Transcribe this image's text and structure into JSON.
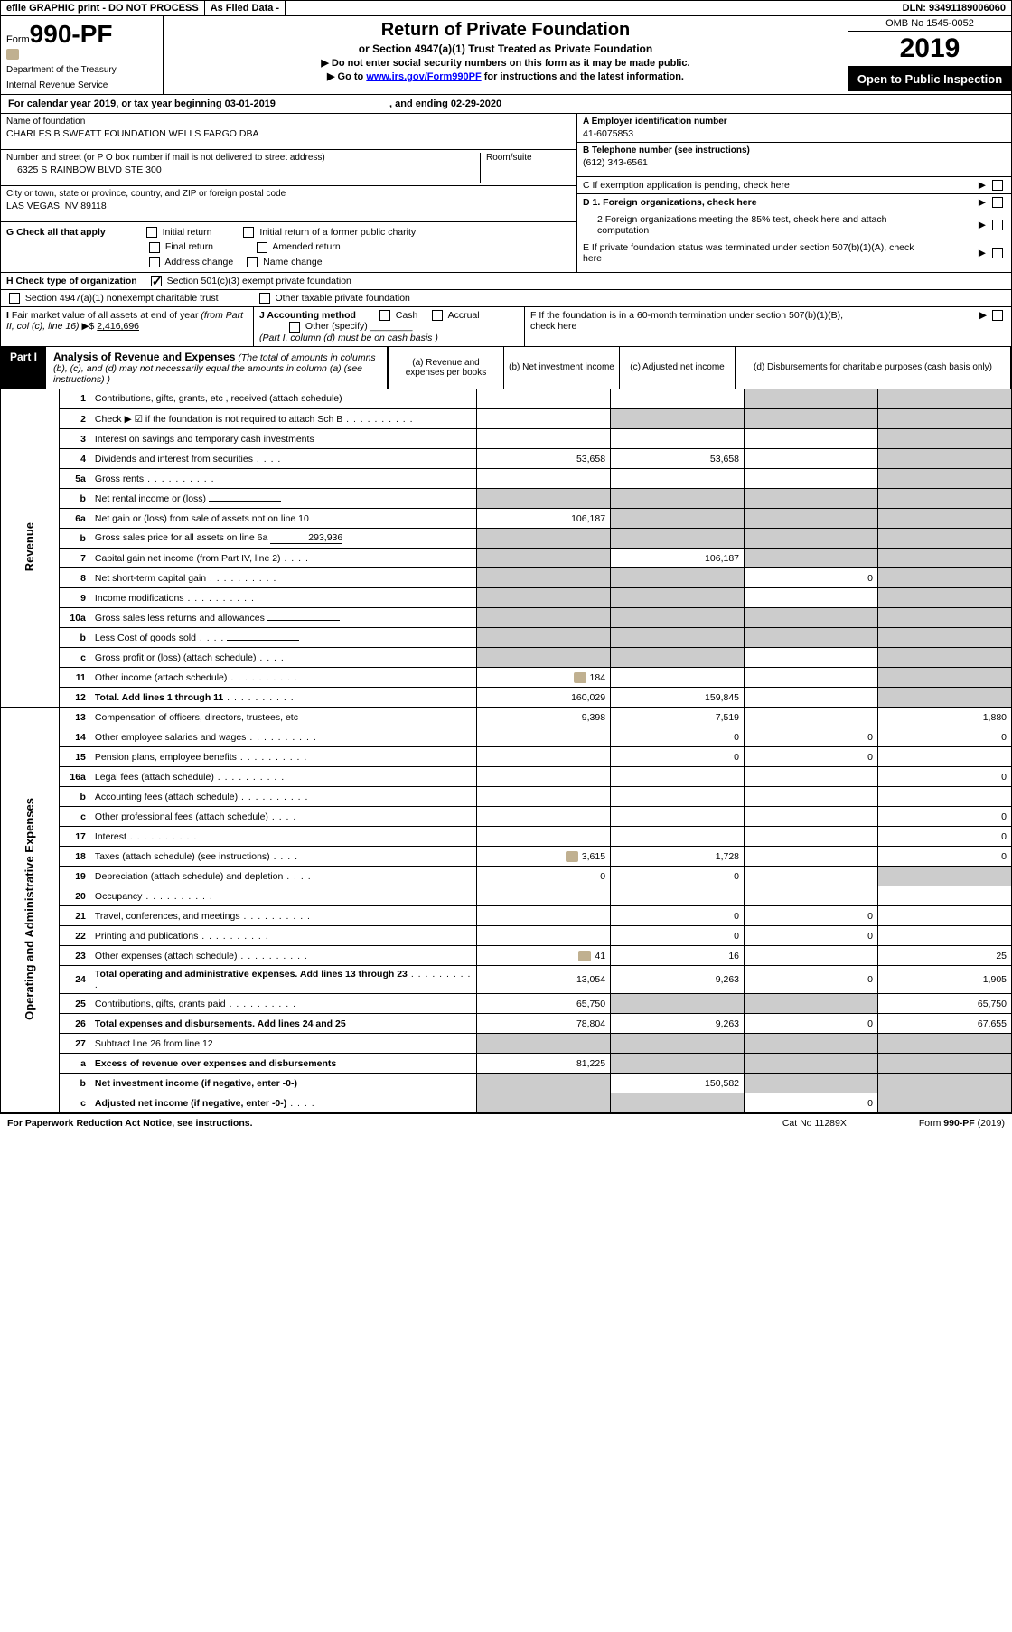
{
  "topbar": {
    "efile": "efile GRAPHIC print - DO NOT PROCESS",
    "asFiled": "As Filed Data -",
    "dln": "DLN: 93491189006060"
  },
  "header": {
    "formPrefix": "Form",
    "formNum": "990-PF",
    "dept1": "Department of the Treasury",
    "dept2": "Internal Revenue Service",
    "title": "Return of Private Foundation",
    "subtitle": "or Section 4947(a)(1) Trust Treated as Private Foundation",
    "note1": "▶ Do not enter social security numbers on this form as it may be made public.",
    "note2": "▶ Go to ",
    "link": "www.irs.gov/Form990PF",
    "note2b": " for instructions and the latest information.",
    "omb": "OMB No 1545-0052",
    "year": "2019",
    "open": "Open to Public Inspection"
  },
  "period": {
    "text1": "For calendar year 2019, or tax year beginning 03-01-2019",
    "text2": ", and ending 02-29-2020"
  },
  "ident": {
    "nameLbl": "Name of foundation",
    "name": "CHARLES B SWEATT FOUNDATION WELLS FARGO DBA",
    "addrLbl": "Number and street (or P O  box number if mail is not delivered to street address)",
    "roomLbl": "Room/suite",
    "addr": "6325 S RAINBOW BLVD STE 300",
    "cityLbl": "City or town, state or province, country, and ZIP or foreign postal code",
    "city": "LAS VEGAS, NV  89118",
    "einLbl": "A Employer identification number",
    "ein": "41-6075853",
    "telLbl": "B Telephone number (see instructions)",
    "tel": "(612) 343-6561",
    "cLbl": "C If exemption application is pending, check here",
    "d1": "D 1. Foreign organizations, check here",
    "d2": "2  Foreign organizations meeting the 85% test, check here and attach computation",
    "eLbl": "E  If private foundation status was terminated under section 507(b)(1)(A), check here",
    "fLbl": "F  If the foundation is in a 60-month termination under section 507(b)(1)(B), check here"
  },
  "g": {
    "lbl": "G Check all that apply",
    "opts": [
      "Initial return",
      "Initial return of a former public charity",
      "Final return",
      "Amended return",
      "Address change",
      "Name change"
    ]
  },
  "h": {
    "lbl": "H Check type of organization",
    "opts": [
      "Section 501(c)(3) exempt private foundation",
      "Section 4947(a)(1) nonexempt charitable trust",
      "Other taxable private foundation"
    ]
  },
  "i": {
    "lbl": "I Fair market value of all assets at end of year (from Part II, col  (c), line 16) ▶$ ",
    "val": "2,416,696"
  },
  "j": {
    "lbl": "J Accounting method",
    "cash": "Cash",
    "accrual": "Accrual",
    "other": "Other (specify)",
    "note": "(Part I, column (d) must be on cash basis )"
  },
  "part1": {
    "label": "Part I",
    "title": "Analysis of Revenue and Expenses",
    "titleNote": " (The total of amounts in columns (b), (c), and (d) may not necessarily equal the amounts in column (a) (see instructions) )",
    "colA": "(a)   Revenue and expenses per books",
    "colB": "(b)  Net investment income",
    "colC": "(c)  Adjusted net income",
    "colD": "(d)  Disbursements for charitable purposes (cash basis only)"
  },
  "sideLabels": {
    "rev": "Revenue",
    "exp": "Operating and Administrative Expenses"
  },
  "rows": [
    {
      "n": "1",
      "d": "Contributions, gifts, grants, etc , received (attach schedule)",
      "a": "",
      "b": "",
      "c": "s",
      "dd": "s"
    },
    {
      "n": "2",
      "d": "Check ▶ ☑ if the foundation is not required to attach Sch  B",
      "dots": 1,
      "a": "",
      "b": "s",
      "c": "s",
      "dd": "s"
    },
    {
      "n": "3",
      "d": "Interest on savings and temporary cash investments",
      "a": "",
      "b": "",
      "c": "",
      "dd": "s"
    },
    {
      "n": "4",
      "d": "Dividends and interest from securities",
      "dots": "s",
      "a": "53,658",
      "b": "53,658",
      "c": "",
      "dd": "s"
    },
    {
      "n": "5a",
      "d": "Gross rents",
      "dots": 1,
      "a": "",
      "b": "",
      "c": "",
      "dd": "s"
    },
    {
      "n": "b",
      "d": "Net rental income or (loss)",
      "embedded": 1,
      "a": "s",
      "b": "s",
      "c": "s",
      "dd": "s"
    },
    {
      "n": "6a",
      "d": "Net gain or (loss) from sale of assets not on line 10",
      "a": "106,187",
      "b": "s",
      "c": "s",
      "dd": "s"
    },
    {
      "n": "b",
      "d": "Gross sales price for all assets on line 6a",
      "val": "293,936",
      "embedded": 1,
      "a": "s",
      "b": "s",
      "c": "s",
      "dd": "s"
    },
    {
      "n": "7",
      "d": "Capital gain net income (from Part IV, line 2)",
      "dots": "s",
      "a": "s",
      "b": "106,187",
      "c": "s",
      "dd": "s"
    },
    {
      "n": "8",
      "d": "Net short-term capital gain",
      "dots": 1,
      "a": "s",
      "b": "s",
      "c": "0",
      "dd": "s"
    },
    {
      "n": "9",
      "d": "Income modifications",
      "dots": 1,
      "a": "s",
      "b": "s",
      "c": "",
      "dd": "s"
    },
    {
      "n": "10a",
      "d": "Gross sales less returns and allowances",
      "embedded": 1,
      "a": "s",
      "b": "s",
      "c": "s",
      "dd": "s"
    },
    {
      "n": "b",
      "d": "Less  Cost of goods sold",
      "dots": "s",
      "embedded": 1,
      "a": "s",
      "b": "s",
      "c": "s",
      "dd": "s"
    },
    {
      "n": "c",
      "d": "Gross profit or (loss) (attach schedule)",
      "dots": "s",
      "a": "s",
      "b": "s",
      "c": "",
      "dd": "s"
    },
    {
      "n": "11",
      "d": "Other income (attach schedule)",
      "dots": 1,
      "icon": 1,
      "a": "184",
      "b": "",
      "c": "",
      "dd": "s"
    },
    {
      "n": "12",
      "d": "Total. Add lines 1 through 11",
      "dots": 1,
      "bold": 1,
      "a": "160,029",
      "b": "159,845",
      "c": "",
      "dd": "s"
    },
    {
      "n": "13",
      "d": "Compensation of officers, directors, trustees, etc",
      "a": "9,398",
      "b": "7,519",
      "c": "",
      "dd": "1,880"
    },
    {
      "n": "14",
      "d": "Other employee salaries and wages",
      "dots": 1,
      "a": "",
      "b": "0",
      "c": "0",
      "dd": "0"
    },
    {
      "n": "15",
      "d": "Pension plans, employee benefits",
      "dots": 1,
      "a": "",
      "b": "0",
      "c": "0",
      "dd": ""
    },
    {
      "n": "16a",
      "d": "Legal fees (attach schedule)",
      "dots": 1,
      "a": "",
      "b": "",
      "c": "",
      "dd": "0"
    },
    {
      "n": "b",
      "d": "Accounting fees (attach schedule)",
      "dots": 1,
      "a": "",
      "b": "",
      "c": "",
      "dd": ""
    },
    {
      "n": "c",
      "d": "Other professional fees (attach schedule)",
      "dots": "s",
      "a": "",
      "b": "",
      "c": "",
      "dd": "0"
    },
    {
      "n": "17",
      "d": "Interest",
      "dots": 1,
      "a": "",
      "b": "",
      "c": "",
      "dd": "0"
    },
    {
      "n": "18",
      "d": "Taxes (attach schedule) (see instructions)",
      "dots": "s",
      "icon": 1,
      "a": "3,615",
      "b": "1,728",
      "c": "",
      "dd": "0"
    },
    {
      "n": "19",
      "d": "Depreciation (attach schedule) and depletion",
      "dots": "s",
      "a": "0",
      "b": "0",
      "c": "",
      "dd": "s"
    },
    {
      "n": "20",
      "d": "Occupancy",
      "dots": 1,
      "a": "",
      "b": "",
      "c": "",
      "dd": ""
    },
    {
      "n": "21",
      "d": "Travel, conferences, and meetings",
      "dots": 1,
      "a": "",
      "b": "0",
      "c": "0",
      "dd": ""
    },
    {
      "n": "22",
      "d": "Printing and publications",
      "dots": 1,
      "a": "",
      "b": "0",
      "c": "0",
      "dd": ""
    },
    {
      "n": "23",
      "d": "Other expenses (attach schedule)",
      "dots": 1,
      "icon": 1,
      "a": "41",
      "b": "16",
      "c": "",
      "dd": "25"
    },
    {
      "n": "24",
      "d": "Total operating and administrative expenses. Add lines 13 through 23",
      "dots": 1,
      "bold": 1,
      "a": "13,054",
      "b": "9,263",
      "c": "0",
      "dd": "1,905"
    },
    {
      "n": "25",
      "d": "Contributions, gifts, grants paid",
      "dots": 1,
      "a": "65,750",
      "b": "s",
      "c": "s",
      "dd": "65,750"
    },
    {
      "n": "26",
      "d": "Total expenses and disbursements. Add lines 24 and 25",
      "bold": 1,
      "a": "78,804",
      "b": "9,263",
      "c": "0",
      "dd": "67,655"
    },
    {
      "n": "27",
      "d": "Subtract line 26 from line 12",
      "a": "s",
      "b": "s",
      "c": "s",
      "dd": "s"
    },
    {
      "n": "a",
      "d": "Excess of revenue over expenses and disbursements",
      "bold": 1,
      "a": "81,225",
      "b": "s",
      "c": "s",
      "dd": "s"
    },
    {
      "n": "b",
      "d": "Net investment income (if negative, enter -0-)",
      "bold": 1,
      "a": "s",
      "b": "150,582",
      "c": "s",
      "dd": "s"
    },
    {
      "n": "c",
      "d": "Adjusted net income (if negative, enter -0-)",
      "dots": "s",
      "bold": 1,
      "a": "s",
      "b": "s",
      "c": "0",
      "dd": "s"
    }
  ],
  "footer": {
    "left": "For Paperwork Reduction Act Notice, see instructions.",
    "mid": "Cat  No  11289X",
    "right": "Form 990-PF (2019)"
  }
}
